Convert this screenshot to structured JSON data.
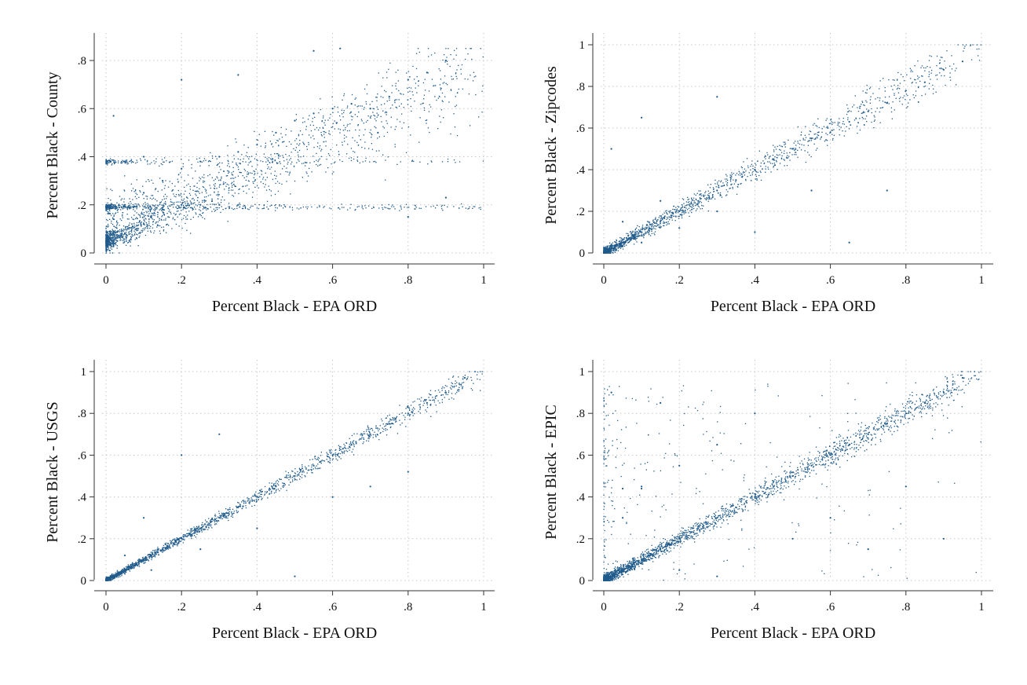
{
  "chart_data": [
    {
      "id": "county",
      "type": "scatter",
      "xlabel": "Percent Black - EPA ORD",
      "ylabel": "Percent Black - County",
      "xlim": [
        0,
        1
      ],
      "ylim": [
        0,
        0.85
      ],
      "xticks": [
        {
          "value": 0,
          "label": "0"
        },
        {
          "value": 0.2,
          "label": ".2"
        },
        {
          "value": 0.4,
          "label": ".4"
        },
        {
          "value": 0.6,
          "label": ".6"
        },
        {
          "value": 0.8,
          "label": ".8"
        },
        {
          "value": 1,
          "label": "1"
        }
      ],
      "yticks": [
        {
          "value": 0,
          "label": "0"
        },
        {
          "value": 0.2,
          "label": ".2"
        },
        {
          "value": 0.4,
          "label": ".4"
        },
        {
          "value": 0.6,
          "label": ".6"
        },
        {
          "value": 0.8,
          "label": ".8"
        }
      ],
      "grid": true,
      "color": "#1f5a8a",
      "points": [
        [
          0.01,
          0.01
        ],
        [
          0.02,
          0.03
        ],
        [
          0.03,
          0.05
        ],
        [
          0.05,
          0.08
        ],
        [
          0.08,
          0.1
        ],
        [
          0.1,
          0.12
        ],
        [
          0.12,
          0.15
        ],
        [
          0.15,
          0.18
        ],
        [
          0.2,
          0.2
        ],
        [
          0.25,
          0.2
        ],
        [
          0.3,
          0.2
        ],
        [
          0.35,
          0.2
        ],
        [
          0.05,
          0.2
        ],
        [
          0.1,
          0.25
        ],
        [
          0.15,
          0.3
        ],
        [
          0.2,
          0.35
        ],
        [
          0.25,
          0.38
        ],
        [
          0.3,
          0.4
        ],
        [
          0.35,
          0.42
        ],
        [
          0.4,
          0.45
        ],
        [
          0.45,
          0.5
        ],
        [
          0.5,
          0.55
        ],
        [
          0.55,
          0.58
        ],
        [
          0.6,
          0.6
        ],
        [
          0.65,
          0.62
        ],
        [
          0.7,
          0.6
        ],
        [
          0.75,
          0.65
        ],
        [
          0.8,
          0.72
        ],
        [
          0.85,
          0.75
        ],
        [
          0.9,
          0.8
        ],
        [
          0.05,
          0.38
        ],
        [
          0.1,
          0.4
        ],
        [
          0.02,
          0.57
        ],
        [
          0.2,
          0.72
        ],
        [
          0.35,
          0.74
        ],
        [
          0.55,
          0.84
        ],
        [
          0.62,
          0.85
        ],
        [
          0.8,
          0.15
        ],
        [
          0.9,
          0.23
        ],
        [
          0.72,
          0.5
        ]
      ]
    },
    {
      "id": "zipcodes",
      "type": "scatter",
      "xlabel": "Percent Black - EPA ORD",
      "ylabel": "Percent Black - Zipcodes",
      "xlim": [
        0,
        1
      ],
      "ylim": [
        0,
        1
      ],
      "xticks": [
        {
          "value": 0,
          "label": "0"
        },
        {
          "value": 0.2,
          "label": ".2"
        },
        {
          "value": 0.4,
          "label": ".4"
        },
        {
          "value": 0.6,
          "label": ".6"
        },
        {
          "value": 0.8,
          "label": ".8"
        },
        {
          "value": 1,
          "label": "1"
        }
      ],
      "yticks": [
        {
          "value": 0,
          "label": "0"
        },
        {
          "value": 0.2,
          "label": ".2"
        },
        {
          "value": 0.4,
          "label": ".4"
        },
        {
          "value": 0.6,
          "label": ".6"
        },
        {
          "value": 0.8,
          "label": ".8"
        },
        {
          "value": 1,
          "label": "1"
        }
      ],
      "grid": true,
      "color": "#1f5a8a",
      "points": [
        [
          0.01,
          0.01
        ],
        [
          0.03,
          0.03
        ],
        [
          0.05,
          0.05
        ],
        [
          0.08,
          0.08
        ],
        [
          0.1,
          0.1
        ],
        [
          0.12,
          0.12
        ],
        [
          0.15,
          0.15
        ],
        [
          0.18,
          0.18
        ],
        [
          0.2,
          0.2
        ],
        [
          0.25,
          0.25
        ],
        [
          0.3,
          0.3
        ],
        [
          0.35,
          0.35
        ],
        [
          0.4,
          0.4
        ],
        [
          0.45,
          0.45
        ],
        [
          0.5,
          0.5
        ],
        [
          0.55,
          0.55
        ],
        [
          0.6,
          0.58
        ],
        [
          0.65,
          0.63
        ],
        [
          0.7,
          0.68
        ],
        [
          0.75,
          0.72
        ],
        [
          0.8,
          0.78
        ],
        [
          0.85,
          0.82
        ],
        [
          0.9,
          0.88
        ],
        [
          0.95,
          0.92
        ],
        [
          0.05,
          0.15
        ],
        [
          0.1,
          0.05
        ],
        [
          0.15,
          0.25
        ],
        [
          0.2,
          0.12
        ],
        [
          0.3,
          0.2
        ],
        [
          0.3,
          0.75
        ],
        [
          0.02,
          0.5
        ],
        [
          0.4,
          0.1
        ],
        [
          0.55,
          0.3
        ],
        [
          0.65,
          0.05
        ],
        [
          0.75,
          0.3
        ],
        [
          0.1,
          0.65
        ]
      ]
    },
    {
      "id": "usgs",
      "type": "scatter",
      "xlabel": "Percent Black - EPA ORD",
      "ylabel": "Percent Black - USGS",
      "xlim": [
        0,
        1
      ],
      "ylim": [
        0,
        1
      ],
      "xticks": [
        {
          "value": 0,
          "label": "0"
        },
        {
          "value": 0.2,
          "label": ".2"
        },
        {
          "value": 0.4,
          "label": ".4"
        },
        {
          "value": 0.6,
          "label": ".6"
        },
        {
          "value": 0.8,
          "label": ".8"
        },
        {
          "value": 1,
          "label": "1"
        }
      ],
      "yticks": [
        {
          "value": 0,
          "label": "0"
        },
        {
          "value": 0.2,
          "label": ".2"
        },
        {
          "value": 0.4,
          "label": ".4"
        },
        {
          "value": 0.6,
          "label": ".6"
        },
        {
          "value": 0.8,
          "label": ".8"
        },
        {
          "value": 1,
          "label": "1"
        }
      ],
      "grid": true,
      "color": "#1f5a8a",
      "points": [
        [
          0.01,
          0.01
        ],
        [
          0.03,
          0.03
        ],
        [
          0.05,
          0.05
        ],
        [
          0.08,
          0.08
        ],
        [
          0.1,
          0.1
        ],
        [
          0.12,
          0.12
        ],
        [
          0.15,
          0.15
        ],
        [
          0.18,
          0.18
        ],
        [
          0.2,
          0.2
        ],
        [
          0.25,
          0.25
        ],
        [
          0.3,
          0.3
        ],
        [
          0.35,
          0.35
        ],
        [
          0.4,
          0.4
        ],
        [
          0.45,
          0.45
        ],
        [
          0.5,
          0.5
        ],
        [
          0.55,
          0.55
        ],
        [
          0.6,
          0.6
        ],
        [
          0.65,
          0.65
        ],
        [
          0.7,
          0.7
        ],
        [
          0.75,
          0.75
        ],
        [
          0.8,
          0.8
        ],
        [
          0.85,
          0.85
        ],
        [
          0.9,
          0.9
        ],
        [
          0.95,
          0.97
        ],
        [
          0.05,
          0.12
        ],
        [
          0.12,
          0.05
        ],
        [
          0.2,
          0.6
        ],
        [
          0.25,
          0.15
        ],
        [
          0.3,
          0.7
        ],
        [
          0.4,
          0.25
        ],
        [
          0.6,
          0.4
        ],
        [
          0.8,
          0.52
        ],
        [
          0.5,
          0.02
        ],
        [
          0.7,
          0.45
        ],
        [
          0.1,
          0.3
        ]
      ]
    },
    {
      "id": "epic",
      "type": "scatter",
      "xlabel": "Percent Black - EPA ORD",
      "ylabel": "Percent Black - EPIC",
      "xlim": [
        0,
        1
      ],
      "ylim": [
        0,
        1
      ],
      "xticks": [
        {
          "value": 0,
          "label": "0"
        },
        {
          "value": 0.2,
          "label": ".2"
        },
        {
          "value": 0.4,
          "label": ".4"
        },
        {
          "value": 0.6,
          "label": ".6"
        },
        {
          "value": 0.8,
          "label": ".8"
        },
        {
          "value": 1,
          "label": "1"
        }
      ],
      "yticks": [
        {
          "value": 0,
          "label": "0"
        },
        {
          "value": 0.2,
          "label": ".2"
        },
        {
          "value": 0.4,
          "label": ".4"
        },
        {
          "value": 0.6,
          "label": ".6"
        },
        {
          "value": 0.8,
          "label": ".8"
        },
        {
          "value": 1,
          "label": "1"
        }
      ],
      "grid": true,
      "color": "#1f5a8a",
      "points": [
        [
          0.01,
          0.01
        ],
        [
          0.03,
          0.03
        ],
        [
          0.05,
          0.05
        ],
        [
          0.08,
          0.08
        ],
        [
          0.1,
          0.1
        ],
        [
          0.12,
          0.12
        ],
        [
          0.15,
          0.15
        ],
        [
          0.18,
          0.18
        ],
        [
          0.2,
          0.2
        ],
        [
          0.25,
          0.25
        ],
        [
          0.3,
          0.3
        ],
        [
          0.35,
          0.35
        ],
        [
          0.4,
          0.4
        ],
        [
          0.45,
          0.45
        ],
        [
          0.5,
          0.5
        ],
        [
          0.55,
          0.55
        ],
        [
          0.6,
          0.6
        ],
        [
          0.65,
          0.65
        ],
        [
          0.7,
          0.7
        ],
        [
          0.75,
          0.75
        ],
        [
          0.8,
          0.8
        ],
        [
          0.85,
          0.85
        ],
        [
          0.9,
          0.9
        ],
        [
          0.95,
          0.97
        ],
        [
          0.05,
          0.3
        ],
        [
          0.1,
          0.45
        ],
        [
          0.02,
          0.9
        ],
        [
          0.15,
          0.85
        ],
        [
          0.2,
          0.55
        ],
        [
          0.3,
          0.65
        ],
        [
          0.4,
          0.8
        ],
        [
          0.5,
          0.2
        ],
        [
          0.6,
          0.3
        ],
        [
          0.7,
          0.15
        ],
        [
          0.8,
          0.45
        ],
        [
          0.9,
          0.2
        ],
        [
          0.05,
          0.44
        ],
        [
          0.1,
          0.44
        ],
        [
          0.3,
          0.02
        ],
        [
          0.2,
          0.05
        ]
      ]
    }
  ]
}
